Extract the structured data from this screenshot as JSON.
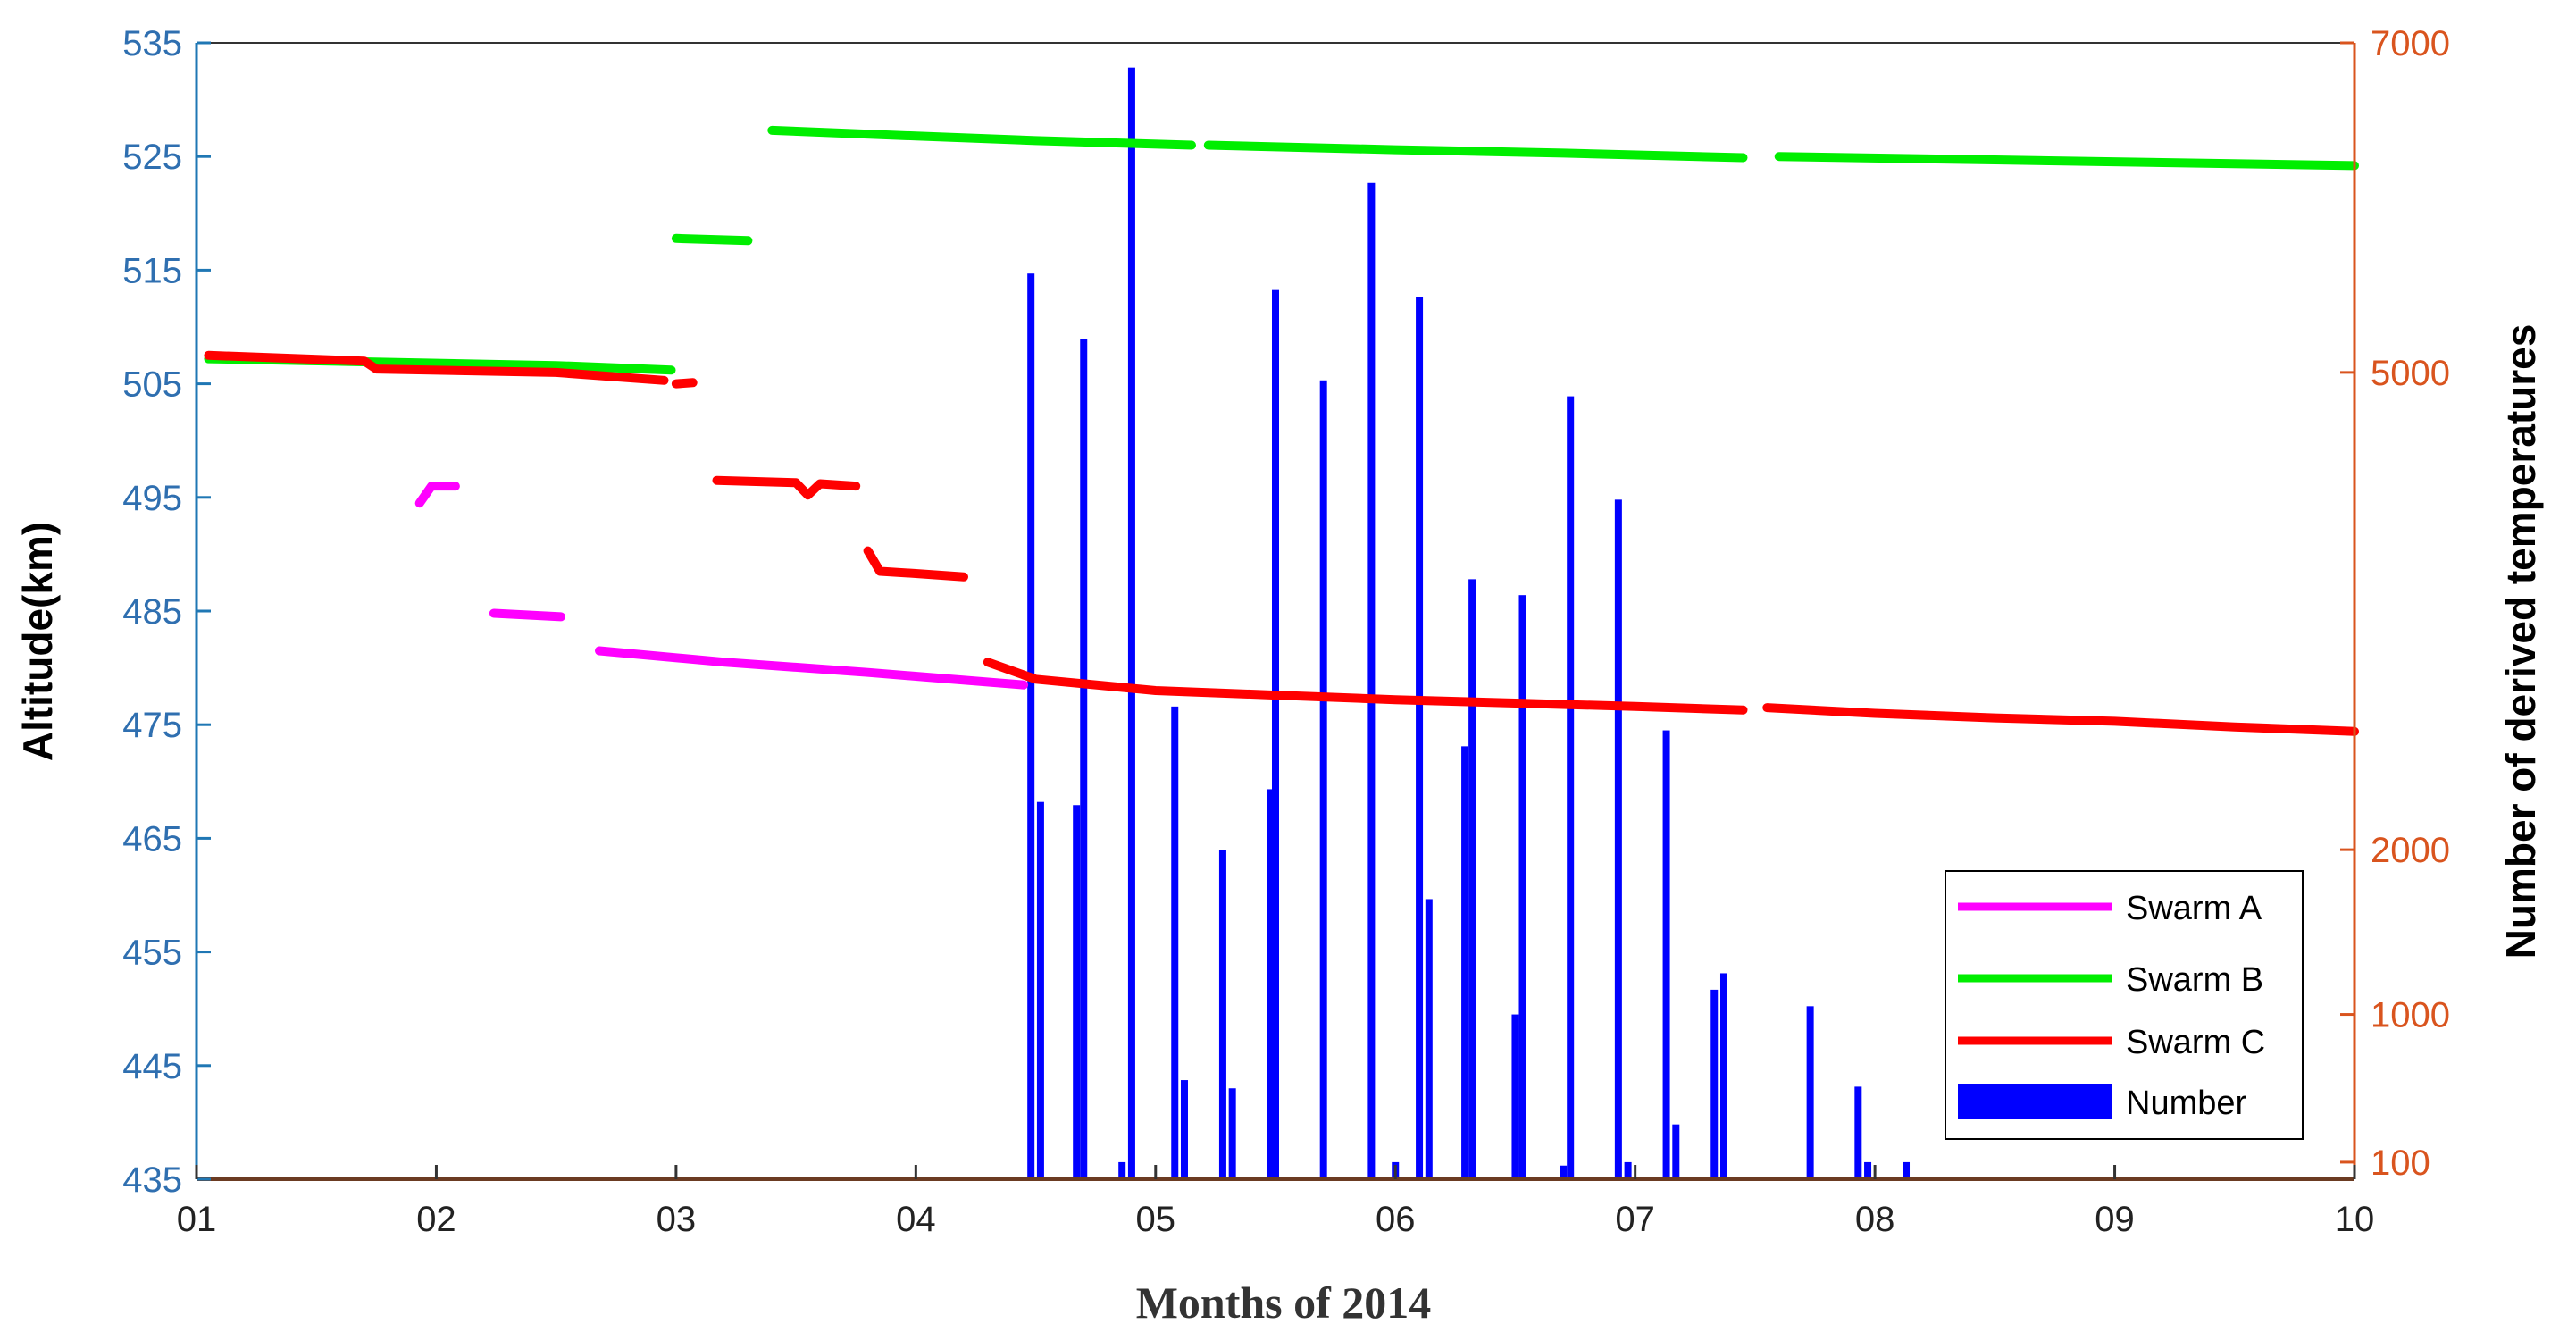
{
  "chart_data": {
    "type": "line",
    "xlabel": "Months of 2014",
    "ylabel_left": "Altitude(km)",
    "ylabel_right": "Number of derived temperatures",
    "x_ticks": [
      "01",
      "02",
      "03",
      "04",
      "05",
      "06",
      "07",
      "08",
      "09",
      "10"
    ],
    "xlim": [
      1,
      10
    ],
    "ylim_left": [
      435,
      535
    ],
    "y_ticks_left": [
      435,
      445,
      455,
      465,
      475,
      485,
      495,
      505,
      515,
      525,
      535
    ],
    "y_ticks_right": [
      {
        "label": "100",
        "value": 100
      },
      {
        "label": "1000",
        "value": 1000
      },
      {
        "label": "2000",
        "value": 2000
      },
      {
        "label": "5000",
        "value": 5000
      },
      {
        "label": "7000",
        "value": 7000
      }
    ],
    "colors": {
      "left_axis": "#1f77b4",
      "right_axis": "#d9541e"
    },
    "legend": {
      "position": "bottom-right",
      "entries": [
        "Swarm A",
        "Swarm B",
        "Swarm C",
        "Number"
      ]
    },
    "series": [
      {
        "name": "Swarm A",
        "color": "#ff00ff",
        "segments": [
          [
            [
              1.93,
              494.5
            ],
            [
              1.98,
              496.0
            ],
            [
              2.08,
              496.0
            ]
          ],
          [
            [
              2.24,
              484.8
            ],
            [
              2.52,
              484.5
            ]
          ],
          [
            [
              2.68,
              481.5
            ],
            [
              3.2,
              480.5
            ],
            [
              3.8,
              479.6
            ],
            [
              4.45,
              478.5
            ]
          ]
        ]
      },
      {
        "name": "Swarm B",
        "color": "#00ee00",
        "segments": [
          [
            [
              1.05,
              507.2
            ],
            [
              2.5,
              506.6
            ],
            [
              2.98,
              506.2
            ]
          ],
          [
            [
              3.0,
              517.8
            ],
            [
              3.3,
              517.6
            ]
          ],
          [
            [
              3.4,
              527.3
            ],
            [
              4.0,
              526.8
            ],
            [
              4.5,
              526.4
            ],
            [
              5.15,
              526.0
            ]
          ],
          [
            [
              5.22,
              526.0
            ],
            [
              6.0,
              525.6
            ],
            [
              6.7,
              525.3
            ],
            [
              7.45,
              524.9
            ]
          ],
          [
            [
              7.6,
              525.0
            ],
            [
              8.5,
              524.7
            ],
            [
              10.0,
              524.2
            ]
          ]
        ]
      },
      {
        "name": "Swarm C",
        "color": "#ff0000",
        "segments": [
          [
            [
              1.05,
              507.5
            ],
            [
              1.7,
              507.0
            ],
            [
              1.75,
              506.3
            ],
            [
              2.5,
              506.0
            ],
            [
              2.95,
              505.3
            ]
          ],
          [
            [
              3.0,
              505.0
            ],
            [
              3.07,
              505.1
            ]
          ],
          [
            [
              3.17,
              496.5
            ],
            [
              3.5,
              496.3
            ],
            [
              3.55,
              495.2
            ],
            [
              3.6,
              496.2
            ],
            [
              3.75,
              496.0
            ]
          ],
          [
            [
              3.8,
              490.3
            ],
            [
              3.85,
              488.5
            ],
            [
              4.0,
              488.3
            ],
            [
              4.2,
              488.0
            ]
          ],
          [
            [
              4.3,
              480.5
            ],
            [
              4.5,
              479.0
            ],
            [
              5.0,
              478.0
            ],
            [
              5.5,
              477.6
            ],
            [
              6.0,
              477.2
            ],
            [
              6.5,
              476.9
            ],
            [
              7.0,
              476.6
            ],
            [
              7.45,
              476.3
            ]
          ],
          [
            [
              7.55,
              476.5
            ],
            [
              8.0,
              476.0
            ],
            [
              8.5,
              475.6
            ],
            [
              9.0,
              475.3
            ],
            [
              9.5,
              474.8
            ],
            [
              10.0,
              474.4
            ]
          ]
        ]
      }
    ],
    "bars": {
      "name": "Number",
      "color": "#0000ff",
      "data": [
        {
          "x": 4.48,
          "y": 5600
        },
        {
          "x": 4.52,
          "y": 2300
        },
        {
          "x": 4.67,
          "y": 2280
        },
        {
          "x": 4.7,
          "y": 5200
        },
        {
          "x": 4.86,
          "y": 100
        },
        {
          "x": 4.9,
          "y": 6850
        },
        {
          "x": 5.08,
          "y": 2900
        },
        {
          "x": 5.12,
          "y": 600
        },
        {
          "x": 5.28,
          "y": 2000
        },
        {
          "x": 5.32,
          "y": 550
        },
        {
          "x": 5.48,
          "y": 2380
        },
        {
          "x": 5.5,
          "y": 5500
        },
        {
          "x": 5.7,
          "y": 4950
        },
        {
          "x": 5.9,
          "y": 6150
        },
        {
          "x": 6.0,
          "y": 100
        },
        {
          "x": 6.1,
          "y": 5460
        },
        {
          "x": 6.14,
          "y": 1700
        },
        {
          "x": 6.29,
          "y": 2650
        },
        {
          "x": 6.32,
          "y": 3700
        },
        {
          "x": 6.5,
          "y": 1000
        },
        {
          "x": 6.53,
          "y": 3600
        },
        {
          "x": 6.7,
          "y": 80
        },
        {
          "x": 6.73,
          "y": 4850
        },
        {
          "x": 6.93,
          "y": 4200
        },
        {
          "x": 6.97,
          "y": 100
        },
        {
          "x": 7.13,
          "y": 2750
        },
        {
          "x": 7.17,
          "y": 330
        },
        {
          "x": 7.33,
          "y": 1150
        },
        {
          "x": 7.37,
          "y": 1250
        },
        {
          "x": 7.73,
          "y": 1050
        },
        {
          "x": 7.93,
          "y": 560
        },
        {
          "x": 7.97,
          "y": 100
        },
        {
          "x": 8.13,
          "y": 100
        },
        {
          "x": 8.33,
          "y": 10
        }
      ]
    }
  }
}
